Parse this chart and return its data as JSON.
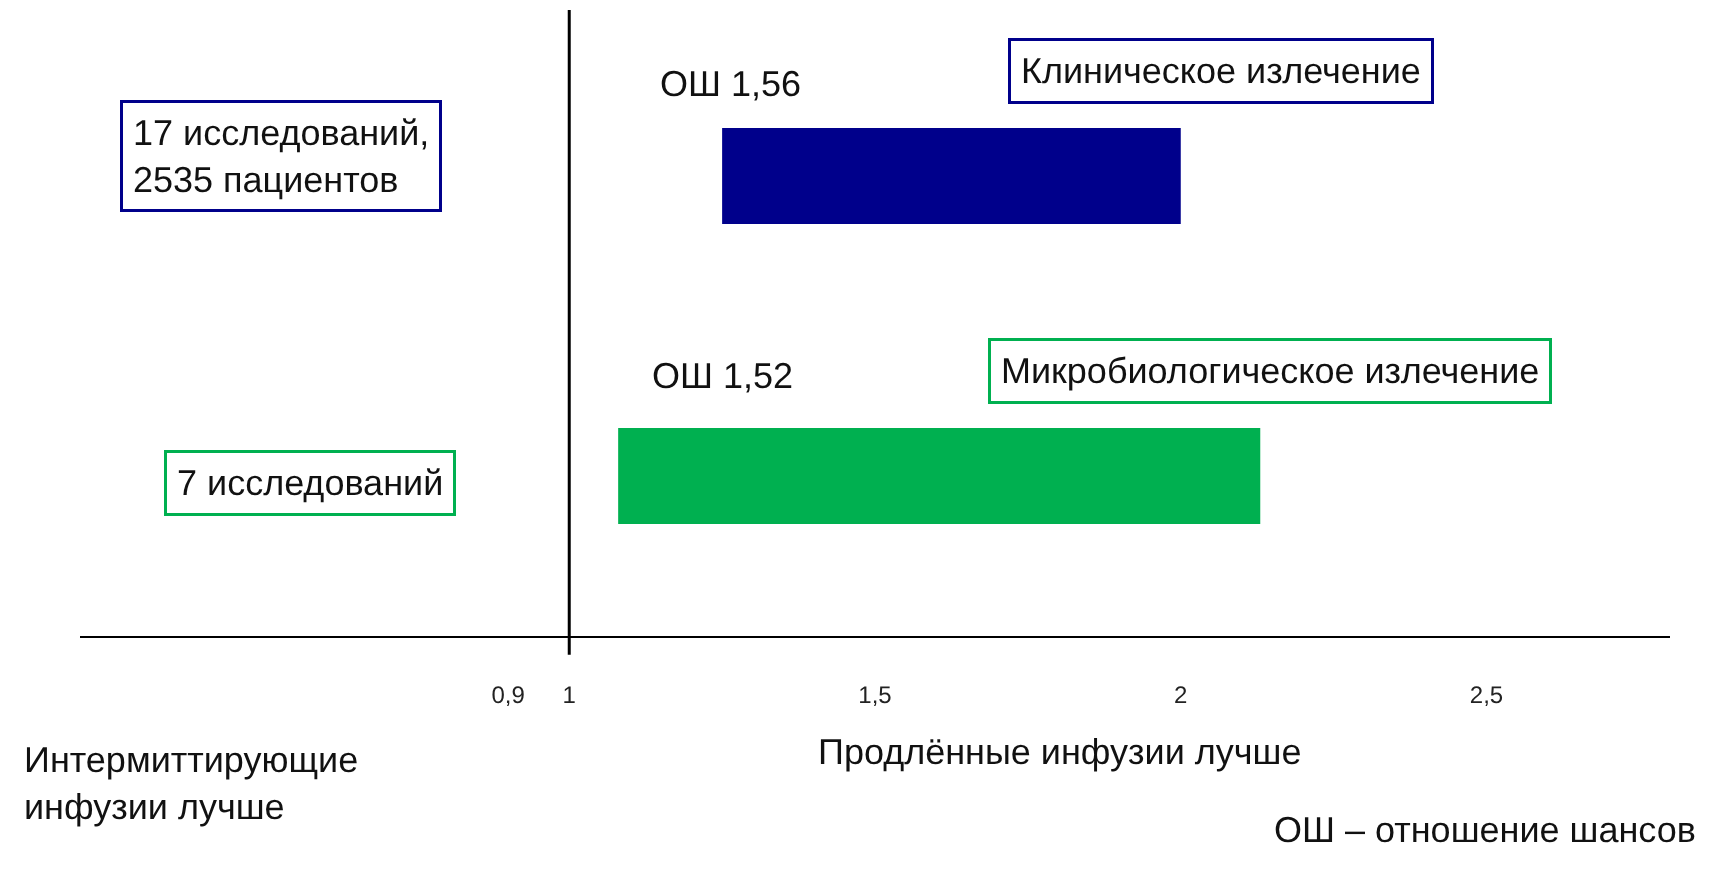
{
  "chart_data": {
    "type": "bar",
    "orientation": "horizontal",
    "categories": [
      null,
      null
    ],
    "base": [
      1.25,
      1.08
    ],
    "values": [
      0.75,
      1.05
    ],
    "colors": [
      "#00008b",
      "#00b050"
    ],
    "xlim": [
      0.2,
      2.8
    ],
    "xticks": [
      {
        "value": 0.9,
        "label": "0,9"
      },
      1,
      {
        "value": 1.5,
        "label": "1,5"
      },
      2,
      {
        "value": 2.5,
        "label": "2,5"
      }
    ],
    "ref_lines": [
      {
        "axis": "x",
        "value": 1,
        "color": "#000000"
      }
    ],
    "grid": false,
    "annotations": [
      "17 исследований,\n2535 пациентов",
      "ОШ 1,56",
      "Клиническое излечение",
      "ОШ 1,52",
      "Микробиологическое излечение",
      "7 исследований",
      "Интермиттирующие\nинфузии лучше",
      "Продлённые инфузии лучше",
      "ОШ – отношение шансов"
    ]
  }
}
